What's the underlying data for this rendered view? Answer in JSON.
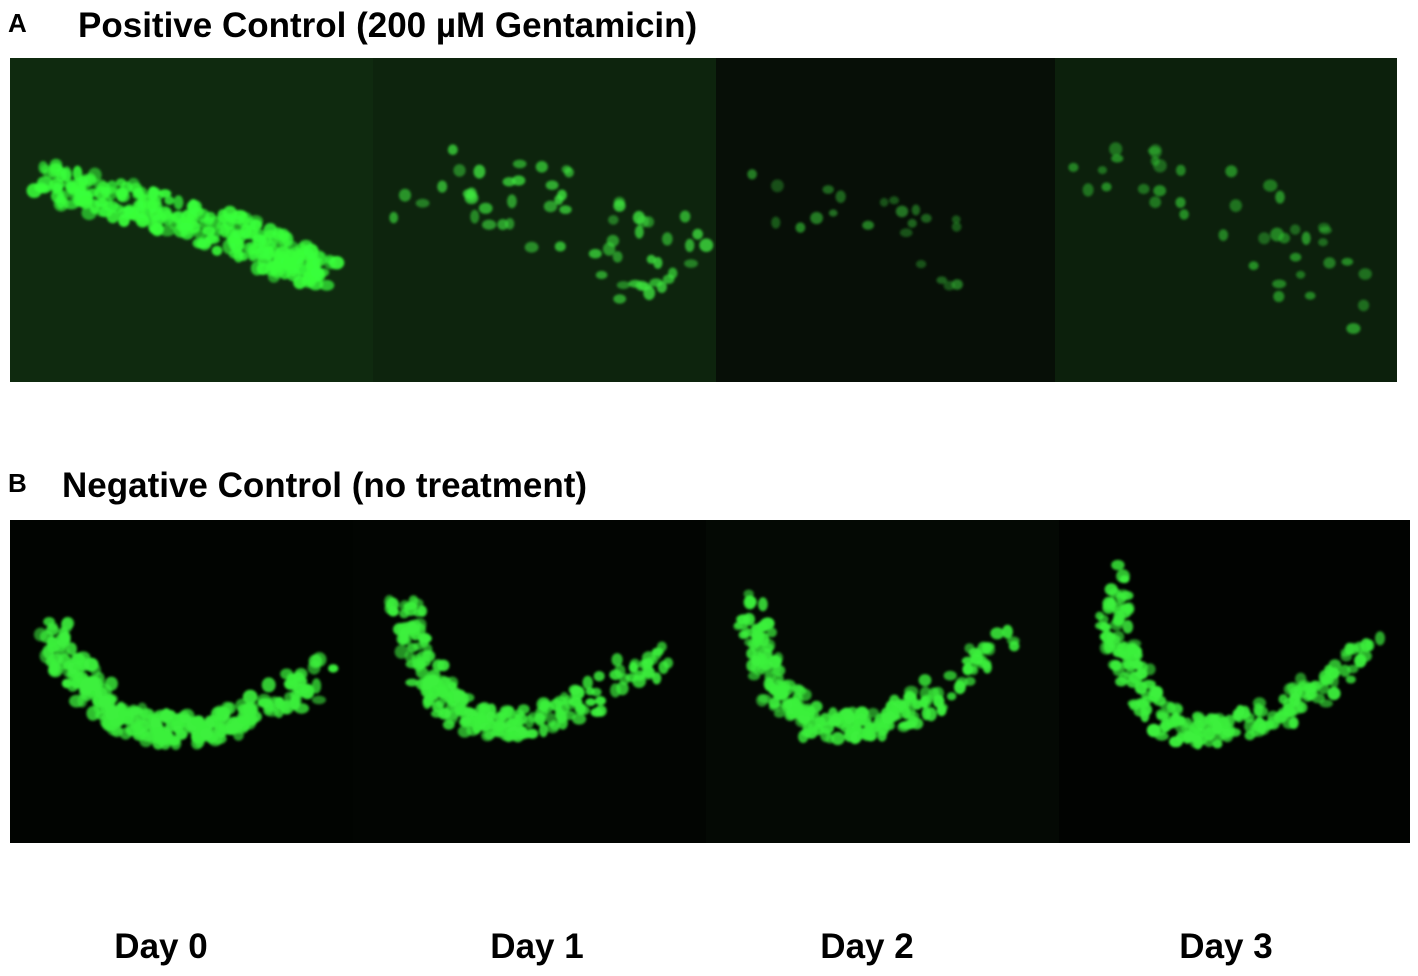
{
  "panels": [
    {
      "label": "A",
      "title": "Positive Control (200 µM Gentamicin)"
    },
    {
      "label": "B",
      "title": "Negative Control (no treatment)"
    }
  ],
  "columns": [
    "Day 0",
    "Day 1",
    "Day 2",
    "Day 3"
  ]
}
